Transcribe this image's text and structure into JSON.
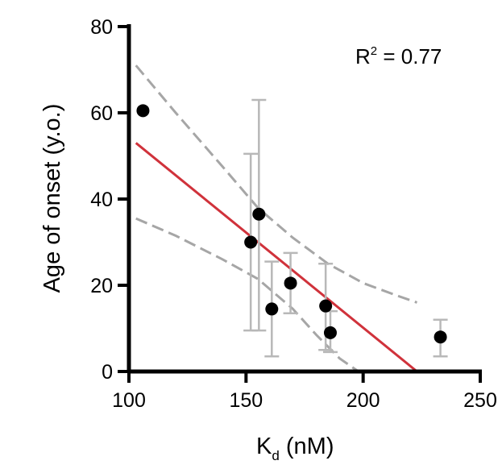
{
  "chart_data": {
    "type": "scatter",
    "title": "",
    "xlabel_main": "K",
    "xlabel_sub": "d",
    "xlabel_unit": " (nM)",
    "ylabel": "Age of onset (y.o.)",
    "xlim": [
      100,
      250
    ],
    "ylim": [
      0,
      80
    ],
    "xticks": [
      "100",
      "150",
      "200",
      "250"
    ],
    "yticks": [
      "0",
      "20",
      "40",
      "60",
      "80"
    ],
    "annotation": {
      "base": "R",
      "sup": "2",
      "rest": " = 0.77"
    },
    "points": [
      {
        "x": 106,
        "y": 60.5
      },
      {
        "x": 152,
        "y": 30,
        "err_low": 9.5,
        "err_high": 50.5
      },
      {
        "x": 155.5,
        "y": 36.5,
        "err_low": 9.5,
        "err_high": 63
      },
      {
        "x": 161,
        "y": 14.5,
        "err_low": 3.5,
        "err_high": 25.5
      },
      {
        "x": 169,
        "y": 20.5,
        "err_low": 13.5,
        "err_high": 27.5
      },
      {
        "x": 184,
        "y": 15.2,
        "err_low": 5,
        "err_high": 25
      },
      {
        "x": 186,
        "y": 9,
        "err_low": 4.5,
        "err_high": 14
      },
      {
        "x": 233,
        "y": 8,
        "err_low": 3.5,
        "err_high": 12
      }
    ],
    "fit_line": {
      "x": [
        103,
        223
      ],
      "y": [
        53,
        0
      ],
      "color": "#d0323b"
    },
    "ci_upper": {
      "x": [
        103,
        120,
        140,
        155,
        170,
        185,
        200,
        215,
        223
      ],
      "y": [
        71,
        60,
        47.5,
        38,
        31,
        25,
        20.5,
        17.5,
        16
      ]
    },
    "ci_lower": {
      "x": [
        103,
        120,
        140,
        155,
        170,
        180,
        190,
        198
      ],
      "y": [
        35.5,
        31.5,
        26,
        21.5,
        14.5,
        8.5,
        3,
        0
      ]
    },
    "colors": {
      "point": "#000000",
      "error_bar": "#b8b8b8",
      "ci": "#a6a6a6",
      "fit": "#d0323b",
      "axis": "#000000"
    }
  }
}
